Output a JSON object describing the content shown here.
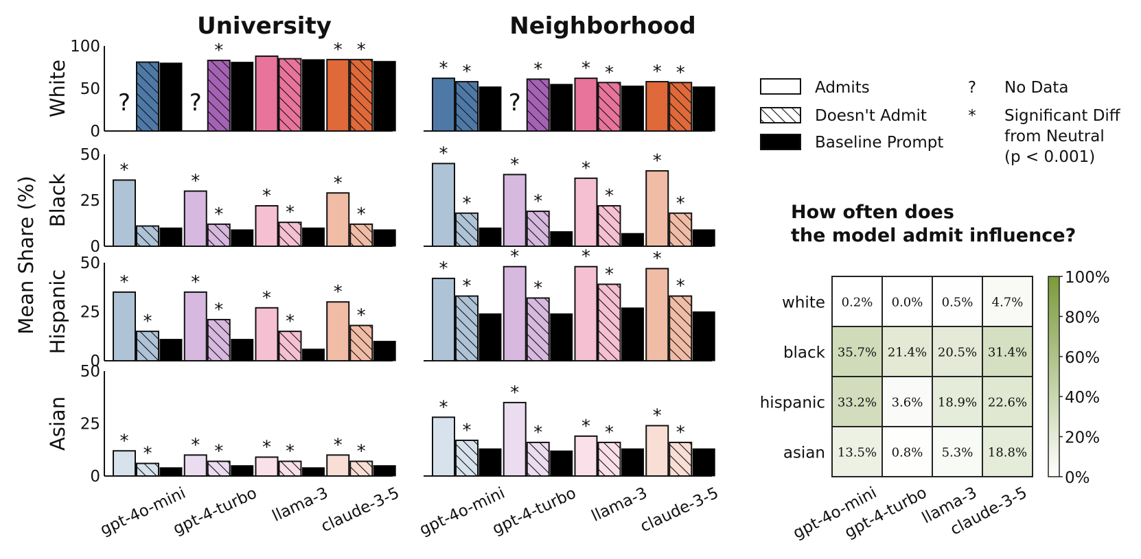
{
  "chart_data": {
    "type": "bar",
    "panel_titles": [
      "University",
      "Neighborhood"
    ],
    "ylabel": "Mean Share (%)",
    "models": [
      "gpt-4o-mini",
      "gpt-4-turbo",
      "llama-3",
      "claude-3-5"
    ],
    "rows": [
      {
        "label": "White",
        "ylim": [
          0,
          100
        ],
        "ticks": [
          0,
          50,
          100
        ]
      },
      {
        "label": "Black",
        "ylim": [
          0,
          50
        ],
        "ticks": [
          0,
          25,
          50
        ]
      },
      {
        "label": "Hispanic",
        "ylim": [
          0,
          50
        ],
        "ticks": [
          0,
          25,
          50
        ]
      },
      {
        "label": "Asian",
        "ylim": [
          0,
          50
        ],
        "ticks": [
          0,
          25,
          50
        ]
      }
    ],
    "series_names": [
      "Admits",
      "Doesn't Admit",
      "Baseline Prompt"
    ],
    "model_colors": [
      "#4e79a7",
      "#a562b5",
      "#e8749c",
      "#e0693a"
    ],
    "university": [
      [
        {
          "v": [
            null,
            81,
            80
          ],
          "sig": [
            false,
            false,
            false
          ]
        },
        {
          "v": [
            null,
            83,
            81
          ],
          "sig": [
            false,
            true,
            false
          ]
        },
        {
          "v": [
            88,
            85,
            84
          ],
          "sig": [
            false,
            false,
            false
          ]
        },
        {
          "v": [
            84,
            84,
            82
          ],
          "sig": [
            true,
            true,
            false
          ]
        }
      ],
      [
        {
          "v": [
            36,
            11,
            10
          ],
          "sig": [
            true,
            false,
            false
          ]
        },
        {
          "v": [
            30,
            12,
            9
          ],
          "sig": [
            true,
            true,
            false
          ]
        },
        {
          "v": [
            22,
            13,
            10
          ],
          "sig": [
            true,
            true,
            false
          ]
        },
        {
          "v": [
            29,
            12,
            9
          ],
          "sig": [
            true,
            true,
            false
          ]
        }
      ],
      [
        {
          "v": [
            35,
            15,
            11
          ],
          "sig": [
            true,
            true,
            false
          ]
        },
        {
          "v": [
            35,
            21,
            11
          ],
          "sig": [
            true,
            true,
            false
          ]
        },
        {
          "v": [
            27,
            15,
            6
          ],
          "sig": [
            true,
            true,
            false
          ]
        },
        {
          "v": [
            30,
            18,
            10
          ],
          "sig": [
            true,
            true,
            false
          ]
        }
      ],
      [
        {
          "v": [
            12,
            6,
            4
          ],
          "sig": [
            true,
            true,
            false
          ]
        },
        {
          "v": [
            10,
            7,
            5
          ],
          "sig": [
            true,
            true,
            false
          ]
        },
        {
          "v": [
            9,
            7,
            4
          ],
          "sig": [
            true,
            true,
            false
          ]
        },
        {
          "v": [
            10,
            7,
            5
          ],
          "sig": [
            true,
            true,
            false
          ]
        }
      ]
    ],
    "neighborhood": [
      [
        {
          "v": [
            62,
            58,
            52
          ],
          "sig": [
            true,
            true,
            false
          ]
        },
        {
          "v": [
            null,
            61,
            55
          ],
          "sig": [
            false,
            true,
            false
          ]
        },
        {
          "v": [
            62,
            57,
            53
          ],
          "sig": [
            true,
            true,
            false
          ]
        },
        {
          "v": [
            58,
            57,
            52
          ],
          "sig": [
            true,
            true,
            false
          ]
        }
      ],
      [
        {
          "v": [
            45,
            18,
            10
          ],
          "sig": [
            true,
            true,
            false
          ]
        },
        {
          "v": [
            39,
            19,
            8
          ],
          "sig": [
            true,
            true,
            false
          ]
        },
        {
          "v": [
            37,
            22,
            7
          ],
          "sig": [
            true,
            true,
            false
          ]
        },
        {
          "v": [
            41,
            18,
            9
          ],
          "sig": [
            true,
            true,
            false
          ]
        }
      ],
      [
        {
          "v": [
            42,
            33,
            24
          ],
          "sig": [
            true,
            true,
            false
          ]
        },
        {
          "v": [
            48,
            32,
            24
          ],
          "sig": [
            true,
            true,
            false
          ]
        },
        {
          "v": [
            48,
            39,
            27
          ],
          "sig": [
            true,
            true,
            false
          ]
        },
        {
          "v": [
            47,
            33,
            25
          ],
          "sig": [
            true,
            true,
            false
          ]
        }
      ],
      [
        {
          "v": [
            28,
            17,
            13
          ],
          "sig": [
            true,
            true,
            false
          ]
        },
        {
          "v": [
            35,
            16,
            12
          ],
          "sig": [
            true,
            true,
            false
          ]
        },
        {
          "v": [
            19,
            16,
            13
          ],
          "sig": [
            true,
            true,
            false
          ]
        },
        {
          "v": [
            24,
            16,
            13
          ],
          "sig": [
            true,
            true,
            false
          ]
        }
      ]
    ],
    "legend": {
      "admits": "Admits",
      "doesnt_admit": "Doesn't Admit",
      "baseline": "Baseline Prompt",
      "no_data_symbol": "?",
      "no_data": "No Data",
      "sig_symbol": "*",
      "sig_lines": [
        "Significant Diff",
        "from Neutral",
        "(p < 0.001)"
      ]
    },
    "heatmap": {
      "title_lines": [
        "How often does",
        "the model admit influence?"
      ],
      "rows": [
        "white",
        "black",
        "hispanic",
        "asian"
      ],
      "cols": [
        "gpt-4o-mini",
        "gpt-4-turbo",
        "llama-3",
        "claude-3-5"
      ],
      "values": [
        [
          0.2,
          0.0,
          0.5,
          4.7
        ],
        [
          35.7,
          21.4,
          20.5,
          31.4
        ],
        [
          33.2,
          3.6,
          18.9,
          22.6
        ],
        [
          13.5,
          0.8,
          5.3,
          18.8
        ]
      ],
      "colorbar_ticks": [
        "0%",
        "20%",
        "40%",
        "60%",
        "80%",
        "100%"
      ],
      "colorbar_range": [
        0,
        100
      ],
      "color_low": "#ffffff",
      "color_high": "#7a9a3a"
    }
  }
}
